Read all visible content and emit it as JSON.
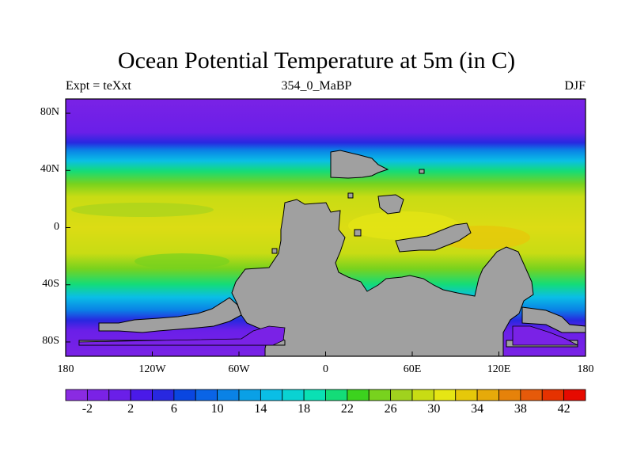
{
  "title": "Ocean Potential Temperature at 5m (in C)",
  "subtitle_left": "Expt = teXxt",
  "subtitle_center": "354_0_MaBP",
  "subtitle_right": "DJF",
  "lon_ticks": [
    {
      "value": -180,
      "label": "180"
    },
    {
      "value": -120,
      "label": "120W"
    },
    {
      "value": -60,
      "label": "60W"
    },
    {
      "value": 0,
      "label": "0"
    },
    {
      "value": 60,
      "label": "60E"
    },
    {
      "value": 120,
      "label": "120E"
    },
    {
      "value": 180,
      "label": "180"
    }
  ],
  "lat_ticks": [
    {
      "value": 80,
      "label": "80N"
    },
    {
      "value": 40,
      "label": "40N"
    },
    {
      "value": 0,
      "label": "0"
    },
    {
      "value": -40,
      "label": "40S"
    },
    {
      "value": -80,
      "label": "80S"
    }
  ],
  "lon_range": [
    -180,
    180
  ],
  "lat_range": [
    -90,
    90
  ],
  "colorbar": {
    "levels": [
      -4,
      -2,
      0,
      2,
      4,
      6,
      8,
      10,
      12,
      14,
      16,
      18,
      20,
      22,
      24,
      26,
      28,
      30,
      32,
      34,
      36,
      38,
      40,
      42,
      44
    ],
    "labels": [
      "-2",
      "2",
      "6",
      "10",
      "14",
      "18",
      "22",
      "26",
      "30",
      "34",
      "38",
      "42"
    ],
    "label_values": [
      -2,
      2,
      6,
      10,
      14,
      18,
      22,
      26,
      30,
      34,
      38,
      42
    ],
    "colors": [
      "#8a2be2",
      "#7a22e6",
      "#6a1fe8",
      "#4a1ae8",
      "#2828e0",
      "#0a46e0",
      "#0a64e6",
      "#0a82e6",
      "#0aa0e6",
      "#0abee6",
      "#0ad2d2",
      "#0ae0b4",
      "#14dc78",
      "#3cd21e",
      "#78d21e",
      "#a0d21e",
      "#c8dc14",
      "#e6e614",
      "#e6c80a",
      "#e6aa0a",
      "#e6820a",
      "#e65a0a",
      "#e63200",
      "#e60a00"
    ]
  },
  "land_color": "#a0a0a0"
}
